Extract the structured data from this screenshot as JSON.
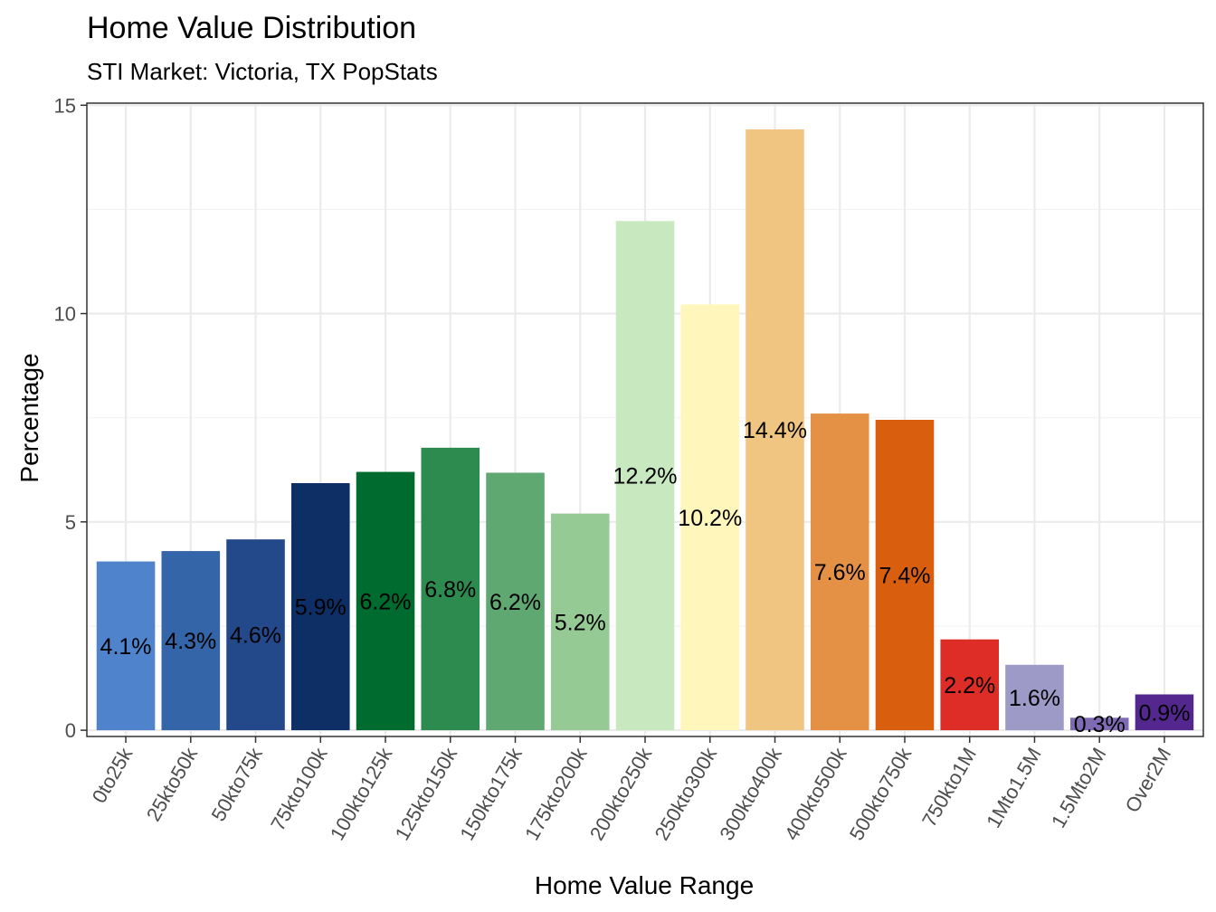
{
  "chart_data": {
    "type": "bar",
    "title": "Home Value Distribution",
    "subtitle": "STI Market: Victoria, TX PopStats",
    "xlabel": "Home Value Range",
    "ylabel": "Percentage",
    "ylim": [
      -0.15,
      15.05
    ],
    "yticks": [
      0,
      5,
      10,
      15
    ],
    "grid": true,
    "categories": [
      "0to25k",
      "25kto50k",
      "50kto75k",
      "75kto100k",
      "100kto125k",
      "125kto150k",
      "150kto175k",
      "175kto200k",
      "200kto250k",
      "250kto300k",
      "300kto400k",
      "400kto500k",
      "500kto750k",
      "750kto1M",
      "1Mto1.5M",
      "1.5Mto2M",
      "Over2M"
    ],
    "values": [
      4.05,
      4.3,
      4.58,
      5.93,
      6.2,
      6.78,
      6.18,
      5.2,
      12.22,
      10.22,
      14.42,
      7.6,
      7.45,
      2.18,
      1.57,
      0.3,
      0.86
    ],
    "labels": [
      "4.1%",
      "4.3%",
      "4.6%",
      "5.9%",
      "6.2%",
      "6.8%",
      "6.2%",
      "5.2%",
      "12.2%",
      "10.2%",
      "14.4%",
      "7.6%",
      "7.4%",
      "2.2%",
      "1.6%",
      "0.3%",
      "0.9%"
    ],
    "colors": [
      "#4F83CC",
      "#3465A8",
      "#23498A",
      "#0D2F66",
      "#006B2E",
      "#2E8B50",
      "#5FA872",
      "#96CA95",
      "#C8E8C0",
      "#FFF6BC",
      "#F0C481",
      "#E49045",
      "#D95F0E",
      "#DE2D26",
      "#9E9AC8",
      "#7E6BB3",
      "#54278F"
    ]
  }
}
